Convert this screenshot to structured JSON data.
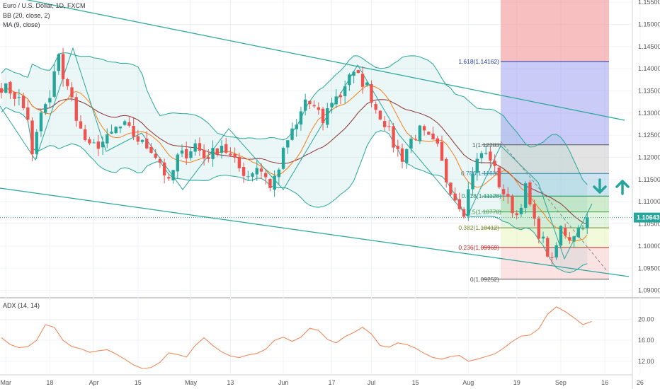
{
  "legend": {
    "symbol": "Euro / U.S. Dollar, 1D, FXCM",
    "bb": "BB (20, close, 2)",
    "ma": "MA (9, close)",
    "adx": "ADX (14, 14)"
  },
  "last_price": "1.10643",
  "colors": {
    "up": "#26a69a",
    "down": "#ef5350",
    "bb_band": "#26a69a",
    "bb_basis": "#8d2f2f",
    "ma": "#f57f17",
    "adx": "#f08a5d",
    "trendline": "#26a69a",
    "zone_red": "#f08080",
    "zone_blue": "#8c8cf0"
  },
  "icons": [
    "arrow-down-icon",
    "arrow-up-icon"
  ],
  "chart_data": {
    "type": "candlestick",
    "title": "Euro / U.S. Dollar, 1D, FXCM",
    "price_axis": {
      "ticks": [
        "1.15500",
        "1.15000",
        "1.14500",
        "1.14000",
        "1.13500",
        "1.13000",
        "1.12500",
        "1.12000",
        "1.11500",
        "1.11000",
        "1.10500",
        "1.10000",
        "1.09500",
        "1.09000"
      ],
      "range": [
        1.0885,
        1.1555
      ]
    },
    "adx_axis": {
      "ticks": [
        "20.00",
        "16.00",
        "12.00"
      ],
      "range": [
        9.4,
        24.0
      ]
    },
    "x_labels": [
      {
        "label": "Mar",
        "index": 1
      },
      {
        "label": "18",
        "index": 11
      },
      {
        "label": "Apr",
        "index": 21
      },
      {
        "label": "15",
        "index": 31
      },
      {
        "label": "May",
        "index": 43
      },
      {
        "label": "13",
        "index": 52
      },
      {
        "label": "Jun",
        "index": 64
      },
      {
        "label": "17",
        "index": 75
      },
      {
        "label": "Jul",
        "index": 84
      },
      {
        "label": "15",
        "index": 94
      },
      {
        "label": "Aug",
        "index": 106
      },
      {
        "label": "19",
        "index": 117
      },
      {
        "label": "Sep",
        "index": 127
      },
      {
        "label": "16",
        "index": 137
      },
      {
        "label": "26",
        "index": 145
      }
    ],
    "price_path": [
      [
        0,
        1.136
      ],
      [
        2,
        1.135
      ],
      [
        4,
        1.133
      ],
      [
        6,
        1.129
      ],
      [
        7,
        1.12
      ],
      [
        9,
        1.13
      ],
      [
        11,
        1.133
      ],
      [
        13,
        1.144
      ],
      [
        14,
        1.138
      ],
      [
        16,
        1.133
      ],
      [
        18,
        1.126
      ],
      [
        20,
        1.122
      ],
      [
        22,
        1.123
      ],
      [
        24,
        1.124
      ],
      [
        26,
        1.1265
      ],
      [
        28,
        1.127
      ],
      [
        30,
        1.125
      ],
      [
        32,
        1.123
      ],
      [
        34,
        1.122
      ],
      [
        36,
        1.119
      ],
      [
        38,
        1.114
      ],
      [
        40,
        1.12
      ],
      [
        42,
        1.121
      ],
      [
        44,
        1.123
      ],
      [
        46,
        1.12
      ],
      [
        48,
        1.121
      ],
      [
        50,
        1.123
      ],
      [
        52,
        1.12
      ],
      [
        54,
        1.1175
      ],
      [
        56,
        1.116
      ],
      [
        58,
        1.118
      ],
      [
        60,
        1.116
      ],
      [
        61,
        1.113
      ],
      [
        63,
        1.118
      ],
      [
        65,
        1.124
      ],
      [
        67,
        1.127
      ],
      [
        69,
        1.133
      ],
      [
        71,
        1.131
      ],
      [
        73,
        1.128
      ],
      [
        75,
        1.133
      ],
      [
        77,
        1.134
      ],
      [
        79,
        1.139
      ],
      [
        81,
        1.138
      ],
      [
        83,
        1.136
      ],
      [
        85,
        1.131
      ],
      [
        87,
        1.128
      ],
      [
        89,
        1.123
      ],
      [
        91,
        1.12
      ],
      [
        93,
        1.124
      ],
      [
        95,
        1.126
      ],
      [
        97,
        1.124
      ],
      [
        99,
        1.122
      ],
      [
        101,
        1.115
      ],
      [
        103,
        1.111
      ],
      [
        105,
        1.108
      ],
      [
        107,
        1.117
      ],
      [
        109,
        1.121
      ],
      [
        111,
        1.12
      ],
      [
        113,
        1.114
      ],
      [
        115,
        1.11
      ],
      [
        117,
        1.107
      ],
      [
        119,
        1.113
      ],
      [
        121,
        1.105
      ],
      [
        123,
        1.101
      ],
      [
        125,
        1.096
      ],
      [
        127,
        1.104
      ],
      [
        129,
        1.102
      ],
      [
        131,
        1.104
      ],
      [
        133,
        1.1064
      ]
    ],
    "adx_path": [
      [
        0,
        16.5
      ],
      [
        2,
        15.2
      ],
      [
        4,
        14.6
      ],
      [
        6,
        14.8
      ],
      [
        8,
        16.0
      ],
      [
        10,
        19.0
      ],
      [
        12,
        18.5
      ],
      [
        14,
        16.0
      ],
      [
        16,
        14.8
      ],
      [
        18,
        14.4
      ],
      [
        20,
        13.7
      ],
      [
        22,
        14.0
      ],
      [
        24,
        14.2
      ],
      [
        26,
        13.4
      ],
      [
        28,
        12.4
      ],
      [
        30,
        11.3
      ],
      [
        32,
        10.6
      ],
      [
        34,
        10.8
      ],
      [
        36,
        11.8
      ],
      [
        38,
        13.6
      ],
      [
        40,
        13.3
      ],
      [
        42,
        12.8
      ],
      [
        44,
        15.0
      ],
      [
        46,
        16.5
      ],
      [
        48,
        15.0
      ],
      [
        50,
        13.8
      ],
      [
        52,
        13.0
      ],
      [
        54,
        12.7
      ],
      [
        56,
        13.2
      ],
      [
        58,
        13.5
      ],
      [
        60,
        14.3
      ],
      [
        62,
        16.0
      ],
      [
        64,
        16.6
      ],
      [
        66,
        15.8
      ],
      [
        68,
        16.6
      ],
      [
        70,
        18.3
      ],
      [
        72,
        17.9
      ],
      [
        74,
        16.2
      ],
      [
        76,
        15.5
      ],
      [
        78,
        16.7
      ],
      [
        80,
        17.5
      ],
      [
        82,
        18.5
      ],
      [
        84,
        17.2
      ],
      [
        86,
        15.0
      ],
      [
        88,
        14.7
      ],
      [
        90,
        15.5
      ],
      [
        92,
        15.2
      ],
      [
        94,
        14.5
      ],
      [
        96,
        13.5
      ],
      [
        98,
        12.7
      ],
      [
        100,
        12.4
      ],
      [
        102,
        12.9
      ],
      [
        104,
        13.1
      ],
      [
        106,
        12.0
      ],
      [
        108,
        12.4
      ],
      [
        110,
        12.9
      ],
      [
        112,
        13.4
      ],
      [
        114,
        14.5
      ],
      [
        116,
        15.8
      ],
      [
        118,
        16.8
      ],
      [
        120,
        17.0
      ],
      [
        122,
        18.2
      ],
      [
        124,
        21.0
      ],
      [
        126,
        22.4
      ],
      [
        128,
        21.5
      ],
      [
        130,
        20.3
      ],
      [
        132,
        19.0
      ],
      [
        134,
        19.6
      ]
    ],
    "fibonacci": [
      {
        "label": "1.618(1.14162)",
        "price": 1.14162,
        "color": "#1e3aa0"
      },
      {
        "label": "1(1.12283)",
        "price": 1.12283,
        "color": "#555555"
      },
      {
        "label": "0.786(1.11638)",
        "price": 1.11638,
        "color": "#2a7fa8"
      },
      {
        "label": "0.618(1.11128)",
        "price": 1.11128,
        "color": "#1b8a5a"
      },
      {
        "label": "0.5(1.10770)",
        "price": 1.1077,
        "color": "#3d9a3d"
      },
      {
        "label": "0.382(1.10412)",
        "price": 1.10412,
        "color": "#7a8a2a"
      },
      {
        "label": "0.236(1.09969)",
        "price": 1.09969,
        "color": "#c62828"
      },
      {
        "label": "0(1.09252)",
        "price": 1.09252,
        "color": "#555555"
      }
    ]
  }
}
